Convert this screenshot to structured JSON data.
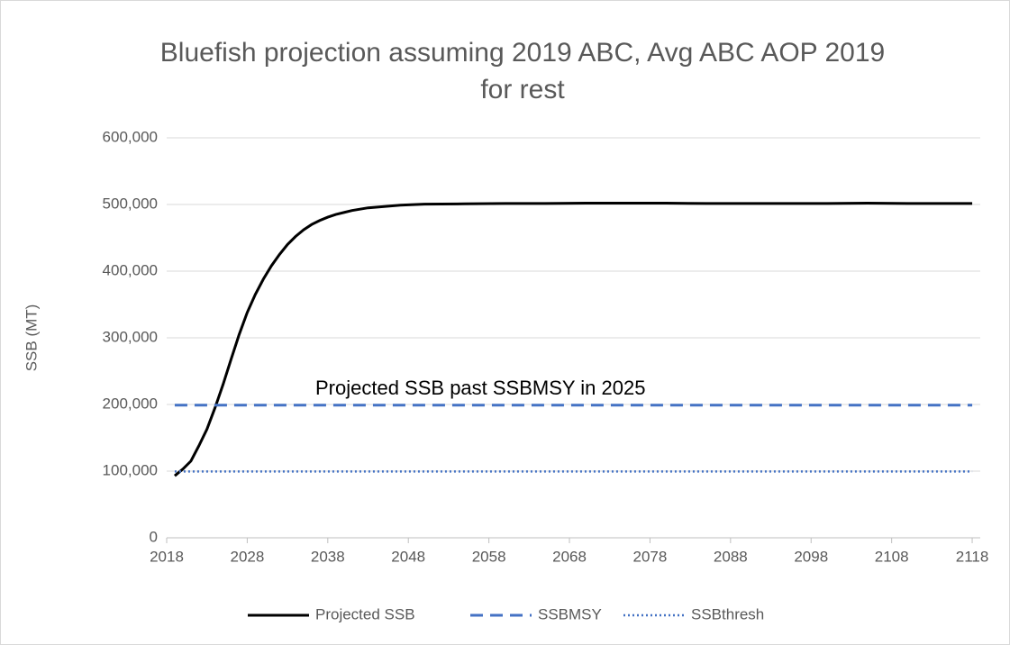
{
  "chart_data": {
    "type": "line",
    "title": [
      "Bluefish projection assuming 2019 ABC, Avg ABC AOP 2019",
      "for rest"
    ],
    "y_label": "SSB (MT)",
    "annotation": "Projected SSB past SSBMSY in 2025",
    "xlim": [
      2018,
      2119
    ],
    "xticks": [
      2018,
      2028,
      2038,
      2048,
      2058,
      2068,
      2078,
      2088,
      2098,
      2108,
      2118
    ],
    "ylim": [
      0,
      600000
    ],
    "yticks": [
      {
        "value": 0,
        "label": "0"
      },
      {
        "value": 100000,
        "label": "100,000"
      },
      {
        "value": 200000,
        "label": "200,000"
      },
      {
        "value": 300000,
        "label": "300,000"
      },
      {
        "value": 400000,
        "label": "400,000"
      },
      {
        "value": 500000,
        "label": "500,000"
      },
      {
        "value": 600000,
        "label": "600,000"
      }
    ],
    "grid": true,
    "legend": "bottom",
    "series": [
      {
        "name": "Projected SSB",
        "color": "#000000",
        "style": "solid",
        "x": [
          2019,
          2020,
          2021,
          2022,
          2023,
          2024,
          2025,
          2026,
          2027,
          2028,
          2029,
          2030,
          2031,
          2032,
          2033,
          2034,
          2035,
          2036,
          2037,
          2038,
          2039,
          2040,
          2041,
          2042,
          2043,
          2044,
          2045,
          2046,
          2047,
          2048,
          2049,
          2050,
          2055,
          2060,
          2065,
          2070,
          2075,
          2080,
          2085,
          2090,
          2095,
          2100,
          2105,
          2110,
          2115,
          2118
        ],
        "values": [
          93000,
          103000,
          115000,
          138000,
          163000,
          195000,
          230000,
          268000,
          305000,
          338000,
          365000,
          388000,
          408000,
          425000,
          440000,
          452000,
          462000,
          470000,
          476000,
          481000,
          485000,
          488000,
          491000,
          493000,
          495000,
          496000,
          497000,
          498000,
          499000,
          499500,
          500000,
          500500,
          501000,
          501500,
          501500,
          502000,
          502000,
          502000,
          501500,
          501500,
          501500,
          501500,
          502000,
          501500,
          501500,
          501500
        ]
      },
      {
        "name": "SSBMSY",
        "color": "#4472c4",
        "style": "dashed",
        "x": [
          2019,
          2118
        ],
        "values": [
          199000,
          199000
        ]
      },
      {
        "name": "SSBthresh",
        "color": "#4472c4",
        "style": "dotted",
        "x": [
          2019,
          2118
        ],
        "values": [
          99500,
          99500
        ]
      }
    ]
  }
}
